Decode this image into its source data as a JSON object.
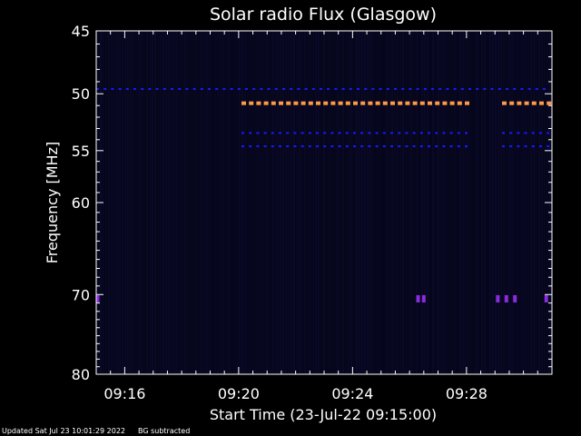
{
  "chart_data": {
    "type": "heatmap",
    "title": "Solar radio Flux (Glasgow)",
    "xlabel": "Start Time (23-Jul-22 09:15:00)",
    "ylabel": "Frequency [MHz]",
    "x_range_minutes_after_0915": [
      0,
      16
    ],
    "ylim": [
      45,
      80
    ],
    "y_scale": "log",
    "y_ticks": [
      45,
      50,
      55,
      60,
      70,
      80
    ],
    "x_ticks": [
      {
        "minute": 1,
        "label": "09:16"
      },
      {
        "minute": 5,
        "label": "09:20"
      },
      {
        "minute": 9,
        "label": "09:24"
      },
      {
        "minute": 13,
        "label": "09:28"
      }
    ],
    "grid": false,
    "colors": {
      "background": "#05051a",
      "blue": "#1a1aff",
      "orange": "#ff9944",
      "purple": "#8a2be2"
    },
    "features": [
      {
        "name": "49.6 MHz dashes",
        "freq_mhz": 49.6,
        "minute_start": 0,
        "minute_end": 16,
        "color": "blue"
      },
      {
        "name": "50.8 MHz dashes",
        "freq_mhz": 50.8,
        "minute_start": 5.1,
        "minute_end": 16,
        "gap": [
          13.0,
          14.1
        ],
        "color": "orange"
      },
      {
        "name": "53.4 MHz dashes",
        "freq_mhz": 53.4,
        "minute_start": 5.1,
        "minute_end": 16,
        "gap": [
          13.0,
          14.1
        ],
        "color": "blue"
      },
      {
        "name": "54.6 MHz dashes",
        "freq_mhz": 54.6,
        "minute_start": 5.1,
        "minute_end": 16,
        "gap": [
          13.0,
          14.1
        ],
        "color": "blue"
      },
      {
        "name": "70.5 MHz marks",
        "freq_mhz": 70.5,
        "minutes": [
          0.05,
          11.3,
          11.5,
          14.1,
          14.4,
          14.7,
          15.8
        ],
        "color": "purple"
      }
    ]
  },
  "footer": {
    "updated": "Updated Sat Jul 23 10:01:29 2022",
    "note": "BG subtracted"
  }
}
